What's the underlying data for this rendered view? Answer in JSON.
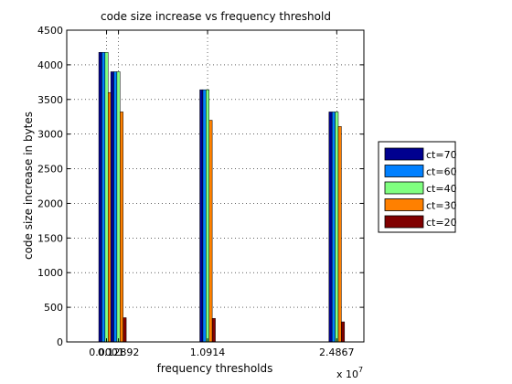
{
  "chart_data": {
    "type": "bar",
    "title": "code size increase vs frequency threshold",
    "xlabel": "frequency thresholds",
    "ylabel": "code size increase in bytes",
    "x_multiplier_label": "x 10",
    "x_multiplier_exponent": "7",
    "categories": [
      "0.0001",
      "0.12892",
      "1.0914",
      "2.4867"
    ],
    "x": [
      0.0001,
      0.12892,
      1.0914,
      2.4867
    ],
    "ylim": [
      0,
      4500
    ],
    "yticks": [
      0,
      500,
      1000,
      1500,
      2000,
      2500,
      3000,
      3500,
      4000,
      4500
    ],
    "grid": true,
    "legend_position": "right",
    "series": [
      {
        "name": "ct=70",
        "color": "#00008f",
        "values": [
          4180,
          3900,
          3640,
          3320
        ]
      },
      {
        "name": "ct=60",
        "color": "#0080ff",
        "values": [
          4180,
          3900,
          3640,
          3320
        ]
      },
      {
        "name": "ct=40",
        "color": "#80ff80",
        "values": [
          4180,
          3900,
          3640,
          3320
        ]
      },
      {
        "name": "ct=30",
        "color": "#ff8000",
        "values": [
          3600,
          3320,
          3200,
          3110
        ]
      },
      {
        "name": "ct=20",
        "color": "#800000",
        "values": [
          585,
          350,
          340,
          290
        ]
      }
    ]
  }
}
